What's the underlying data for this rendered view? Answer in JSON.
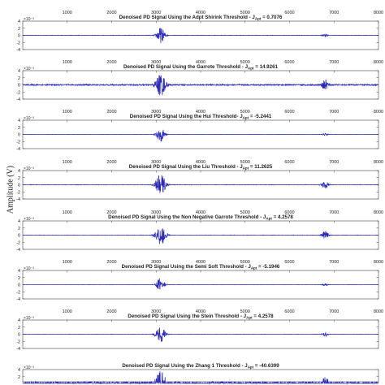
{
  "figure": {
    "ylabel": "Amplitude (V)"
  },
  "colors": {
    "signal": "#2b2bb5",
    "axis": "#444444",
    "text": "#222222"
  },
  "chart_data": [
    {
      "type": "line",
      "title": "Denoised PD Signal Using the Adpt Shirink Threshold - J",
      "title_sub": "Apt",
      "title_value": " = 0.7076",
      "exponent": "×10⁻³",
      "xlim": [
        0,
        8000
      ],
      "xticks": [
        "1000",
        "2000",
        "3000",
        "4000",
        "5000",
        "6000",
        "7000",
        "8000"
      ],
      "ylim": [
        -4,
        4
      ],
      "yticks": [
        "4",
        "2",
        "0",
        "-2",
        "-4"
      ],
      "xticks_position": "top",
      "bursts": [
        {
          "center": 3100,
          "width": 90,
          "amplitude": 2.2
        },
        {
          "center": 6800,
          "width": 60,
          "amplitude": 0.5
        }
      ],
      "noise": 0.05
    },
    {
      "type": "line",
      "title": "Denoised PD Signal Using the Garrote Threshold - J",
      "title_sub": "Apt",
      "title_value": " = 14.9261",
      "exponent": "×10⁻³",
      "xlim": [
        0,
        8000
      ],
      "xticks": [
        "1000",
        "2000",
        "3000",
        "4000",
        "5000",
        "6000",
        "7000",
        "8000"
      ],
      "ylim": [
        -4,
        4
      ],
      "yticks": [
        "4",
        "2",
        "0",
        "-2",
        "-4"
      ],
      "xticks_position": "top",
      "bursts": [
        {
          "center": 3100,
          "width": 110,
          "amplitude": 3.2
        },
        {
          "center": 6800,
          "width": 70,
          "amplitude": 1.4
        }
      ],
      "noise": 0.18
    },
    {
      "type": "line",
      "title": "Denoised PD Signal Using the Hui Threshold- J",
      "title_sub": "Apt",
      "title_value": " = -5.2441",
      "exponent": "×10⁻³",
      "xlim": [
        0,
        8000
      ],
      "xticks": [
        "1000",
        "2000",
        "3000",
        "4000",
        "5000",
        "6000",
        "7000",
        "8000"
      ],
      "ylim": [
        -4,
        4
      ],
      "yticks": [
        "4",
        "2",
        "0",
        "-2",
        "-4"
      ],
      "xticks_position": "top",
      "bursts": [
        {
          "center": 3100,
          "width": 90,
          "amplitude": 2.0
        },
        {
          "center": 6800,
          "width": 60,
          "amplitude": 0.3
        }
      ],
      "noise": 0.03
    },
    {
      "type": "line",
      "title": "Denoised PD Signal Using the Liu Threshold - J",
      "title_sub": "Apt",
      "title_value": " = 11.2625",
      "exponent": "×10⁻³",
      "xlim": [
        0,
        8000
      ],
      "xticks": [
        "1000",
        "2000",
        "3000",
        "4000",
        "5000",
        "6000",
        "7000",
        "8000"
      ],
      "ylim": [
        -4,
        4
      ],
      "yticks": [
        "4",
        "2",
        "0",
        "-2",
        "-4"
      ],
      "xticks_position": "top",
      "bursts": [
        {
          "center": 3100,
          "width": 110,
          "amplitude": 3.0
        },
        {
          "center": 6800,
          "width": 70,
          "amplitude": 1.1
        }
      ],
      "noise": 0.06
    },
    {
      "type": "line",
      "title": "Denoised PD Signal Using the Non Negative Garrote Threshold - J",
      "title_sub": "Apt",
      "title_value": " = 4.2578",
      "exponent": "×10⁻³",
      "xlim": [
        0,
        8000
      ],
      "xticks": [
        "1000",
        "2000",
        "3000",
        "4000",
        "5000",
        "6000",
        "7000",
        "8000"
      ],
      "ylim": [
        -4,
        4
      ],
      "yticks": [
        "4",
        "2",
        "0",
        "-2",
        "-4"
      ],
      "xticks_position": "top",
      "bursts": [
        {
          "center": 3100,
          "width": 110,
          "amplitude": 3.0
        },
        {
          "center": 6800,
          "width": 70,
          "amplitude": 1.2
        }
      ],
      "noise": 0.05
    },
    {
      "type": "line",
      "title": "Denoised PD Signal Using the Semi Soft Threshold - J",
      "title_sub": "Apt",
      "title_value": " = -5.1946",
      "exponent": "×10⁻³",
      "xlim": [
        0,
        8000
      ],
      "xticks": [
        "1000",
        "2000",
        "3000",
        "4000",
        "5000",
        "6000",
        "7000",
        "8000"
      ],
      "ylim": [
        -4,
        4
      ],
      "yticks": [
        "4",
        "2",
        "0",
        "-2",
        "-4"
      ],
      "xticks_position": "top",
      "bursts": [
        {
          "center": 3100,
          "width": 90,
          "amplitude": 2.0
        },
        {
          "center": 6800,
          "width": 60,
          "amplitude": 0.3
        }
      ],
      "noise": 0.03
    },
    {
      "type": "line",
      "title": "Denoised PD Signal Using the Stein Threshold - J",
      "title_sub": "Apt",
      "title_value": " = 4.2578",
      "exponent": "×10⁻³",
      "xlim": [
        0,
        8000
      ],
      "xticks": [
        "1000",
        "2000",
        "3000",
        "4000",
        "5000",
        "6000",
        "7000",
        "8000"
      ],
      "ylim": [
        -4,
        4
      ],
      "yticks": [
        "4",
        "2",
        "0",
        "-2",
        "-4"
      ],
      "xticks_position": "top",
      "bursts": [
        {
          "center": 3100,
          "width": 100,
          "amplitude": 2.4
        },
        {
          "center": 6800,
          "width": 60,
          "amplitude": 0.6
        }
      ],
      "noise": 0.04
    },
    {
      "type": "line",
      "title": "Denoised PD Signal Using the Zhang 1 Threshold - J",
      "title_sub": "Apt",
      "title_value": " = -40.6399",
      "exponent": "×10⁻³",
      "xlim": [
        0,
        8000
      ],
      "xticks": [],
      "ylim": [
        -4,
        4
      ],
      "yticks": [
        "4",
        "2",
        "0"
      ],
      "xticks_position": "none",
      "bursts": [
        {
          "center": 3100,
          "width": 110,
          "amplitude": 3.0
        },
        {
          "center": 6800,
          "width": 70,
          "amplitude": 1.5
        }
      ],
      "noise": 0.6
    }
  ]
}
